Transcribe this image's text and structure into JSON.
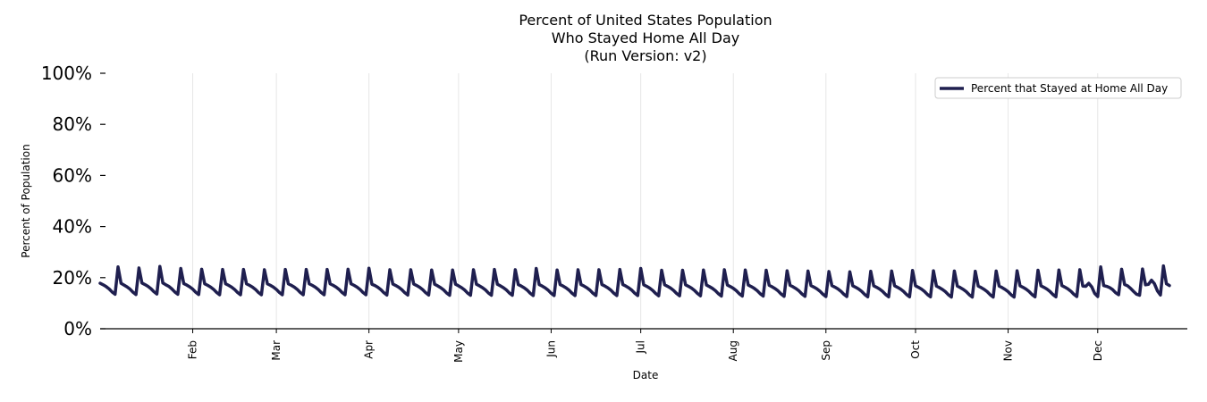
{
  "chart_data": {
    "type": "line",
    "title_lines": [
      "Percent of United States Population",
      "Who Stayed Home All Day",
      "(Run Version: v2)"
    ],
    "xlabel": "Date",
    "ylabel": "Percent of Population",
    "ylim": [
      0,
      100
    ],
    "yticks": [
      0,
      20,
      40,
      60,
      80,
      100
    ],
    "ytick_labels": [
      "0%",
      "20%",
      "40%",
      "60%",
      "80%",
      "100%"
    ],
    "x_range": [
      "2021-01-01",
      "2021-12-31"
    ],
    "xticks": [
      {
        "date": "2021-02-01",
        "label": "Feb"
      },
      {
        "date": "2021-03-01",
        "label": "Mar"
      },
      {
        "date": "2021-04-01",
        "label": "Apr"
      },
      {
        "date": "2021-05-01",
        "label": "May"
      },
      {
        "date": "2021-06-01",
        "label": "Jun"
      },
      {
        "date": "2021-07-01",
        "label": "Jul"
      },
      {
        "date": "2021-08-01",
        "label": "Aug"
      },
      {
        "date": "2021-09-01",
        "label": "Sep"
      },
      {
        "date": "2021-10-01",
        "label": "Oct"
      },
      {
        "date": "2021-11-01",
        "label": "Nov"
      },
      {
        "date": "2021-12-01",
        "label": "Dec"
      }
    ],
    "grid": "vertical",
    "legend_position": "top-right",
    "series": [
      {
        "name": "Percent that Stayed at Home All Day",
        "color": "#1f1f4f",
        "x_start": "2021-01-01",
        "x_step": "1 day",
        "values": [
          17.8,
          17.2,
          16.5,
          15.6,
          14.4,
          13.5,
          24.2,
          17.8,
          17.1,
          16.4,
          15.5,
          14.3,
          13.4,
          23.8,
          17.9,
          17.3,
          16.6,
          15.7,
          14.5,
          13.6,
          24.4,
          17.9,
          17.2,
          16.6,
          15.6,
          14.4,
          13.5,
          23.6,
          17.7,
          17.1,
          16.4,
          15.5,
          14.3,
          13.4,
          23.3,
          17.6,
          17.0,
          16.3,
          15.4,
          14.2,
          13.3,
          23.2,
          17.6,
          17.0,
          16.3,
          15.4,
          14.2,
          13.3,
          23.2,
          17.6,
          17.0,
          16.3,
          15.4,
          14.2,
          13.3,
          23.1,
          17.6,
          17.0,
          16.3,
          15.4,
          14.2,
          13.3,
          23.2,
          17.6,
          17.0,
          16.3,
          15.4,
          14.2,
          13.3,
          23.2,
          17.6,
          17.0,
          16.3,
          15.4,
          14.2,
          13.3,
          23.2,
          17.6,
          17.0,
          16.3,
          15.4,
          14.2,
          13.3,
          23.3,
          17.6,
          17.0,
          16.3,
          15.4,
          14.2,
          13.3,
          23.7,
          17.4,
          16.9,
          16.2,
          15.3,
          14.1,
          13.2,
          23.1,
          17.5,
          16.9,
          16.2,
          15.3,
          14.1,
          13.2,
          23.1,
          17.5,
          16.9,
          16.2,
          15.3,
          14.1,
          13.2,
          23.0,
          17.4,
          16.8,
          16.1,
          15.2,
          14.0,
          13.1,
          23.0,
          17.4,
          16.8,
          16.1,
          15.2,
          14.0,
          13.1,
          23.1,
          17.4,
          16.8,
          16.1,
          15.2,
          14.0,
          13.1,
          23.2,
          17.4,
          16.8,
          16.1,
          15.2,
          14.0,
          13.1,
          23.1,
          17.3,
          16.7,
          16.0,
          15.1,
          13.9,
          13.0,
          23.6,
          17.3,
          16.7,
          16.0,
          15.1,
          13.9,
          13.0,
          23.0,
          17.3,
          16.7,
          16.0,
          15.1,
          13.9,
          13.0,
          23.1,
          17.3,
          16.7,
          16.0,
          15.1,
          13.9,
          13.0,
          23.1,
          17.3,
          16.7,
          16.0,
          15.1,
          13.9,
          13.0,
          23.2,
          17.3,
          16.7,
          16.0,
          15.1,
          13.9,
          13.0,
          23.6,
          17.2,
          16.6,
          15.9,
          15.0,
          13.8,
          12.9,
          22.9,
          17.2,
          16.6,
          15.9,
          15.0,
          13.8,
          12.9,
          22.9,
          17.2,
          16.6,
          15.9,
          15.0,
          13.8,
          12.9,
          23.0,
          17.1,
          16.5,
          15.8,
          14.9,
          13.7,
          12.8,
          23.1,
          17.1,
          16.5,
          15.8,
          14.9,
          13.7,
          12.8,
          23.0,
          17.1,
          16.5,
          15.8,
          14.9,
          13.7,
          12.8,
          22.9,
          17.0,
          16.4,
          15.7,
          14.8,
          13.6,
          12.7,
          22.7,
          17.0,
          16.4,
          15.7,
          14.8,
          13.6,
          12.7,
          22.6,
          16.9,
          16.3,
          15.6,
          14.7,
          13.5,
          12.6,
          22.4,
          16.9,
          16.3,
          15.6,
          14.7,
          13.5,
          12.6,
          22.3,
          16.8,
          16.2,
          15.5,
          14.6,
          13.4,
          12.5,
          22.5,
          16.8,
          16.2,
          15.5,
          14.6,
          13.4,
          12.5,
          22.6,
          16.8,
          16.2,
          15.5,
          14.6,
          13.4,
          12.5,
          22.8,
          16.8,
          16.2,
          15.5,
          14.6,
          13.4,
          12.5,
          22.7,
          16.7,
          16.1,
          15.4,
          14.5,
          13.3,
          12.4,
          22.6,
          16.7,
          16.1,
          15.4,
          14.5,
          13.3,
          12.4,
          22.5,
          16.7,
          16.1,
          15.4,
          14.5,
          13.3,
          12.4,
          22.6,
          16.7,
          16.1,
          15.4,
          14.5,
          13.3,
          12.4,
          22.7,
          16.8,
          16.2,
          15.5,
          14.6,
          13.4,
          12.5,
          22.9,
          16.8,
          16.2,
          15.5,
          14.6,
          13.4,
          12.5,
          23.0,
          16.9,
          16.3,
          15.6,
          14.7,
          13.5,
          12.6,
          23.1,
          16.7,
          16.6,
          17.8,
          16.4,
          13.8,
          12.6,
          24.2,
          16.9,
          16.6,
          16.1,
          15.3,
          14.1,
          13.3,
          23.3,
          17.3,
          16.8,
          15.8,
          14.6,
          13.5,
          13.1,
          23.4,
          17.2,
          17.4,
          19.0,
          17.6,
          14.8,
          13.2,
          24.6,
          17.6,
          16.9
        ]
      }
    ]
  }
}
